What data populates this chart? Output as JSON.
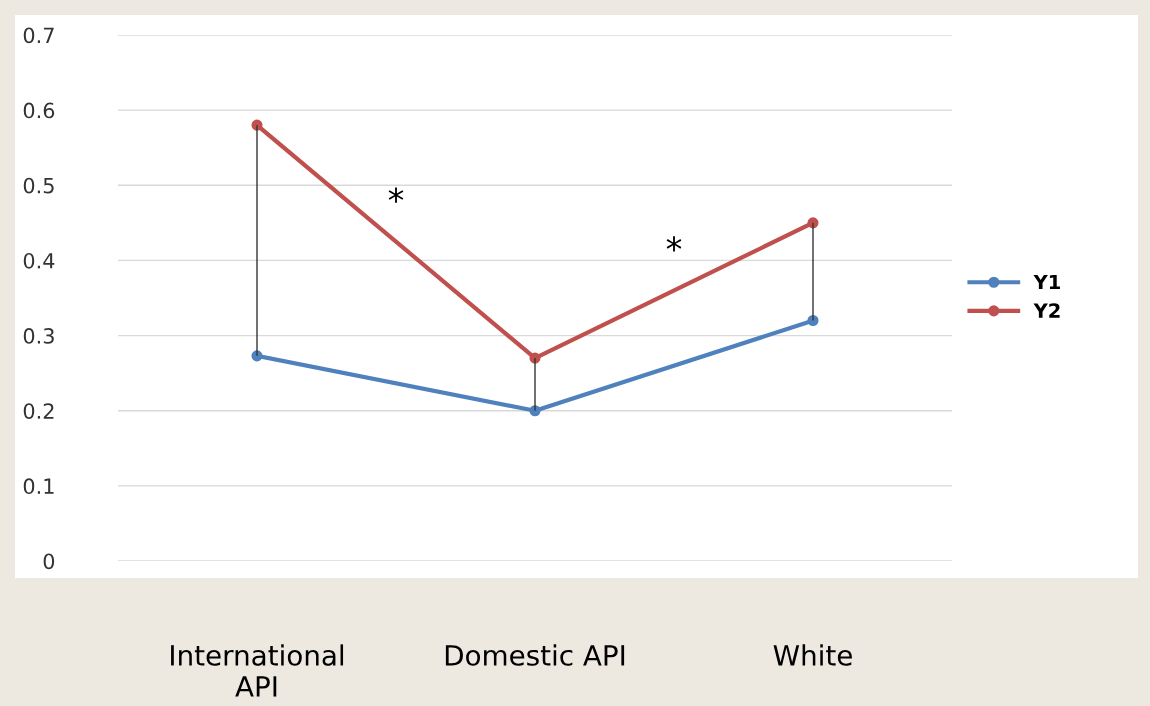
{
  "chart_data": {
    "type": "line",
    "categories": [
      "International\nAPI",
      "Domestic API",
      "White"
    ],
    "series": [
      {
        "name": "Y1",
        "color": "#4f81bd",
        "values": [
          0.273,
          0.2,
          0.32
        ],
        "errors": [
          [
            0.273,
            0.58
          ],
          [
            0.2,
            0.27
          ],
          [
            0.32,
            0.45
          ]
        ]
      },
      {
        "name": "Y2",
        "color": "#c0504d",
        "values": [
          0.58,
          0.27,
          0.45
        ]
      }
    ],
    "ylim": [
      0,
      0.7
    ],
    "yticks": [
      {
        "value": 0,
        "label": "0"
      },
      0.1,
      0.2,
      0.3,
      0.4,
      0.5,
      0.6,
      0.7
    ],
    "grid": "y",
    "legend": "right",
    "marker": "circle",
    "line_style": "solid",
    "annotations": [
      "*",
      "*"
    ]
  }
}
